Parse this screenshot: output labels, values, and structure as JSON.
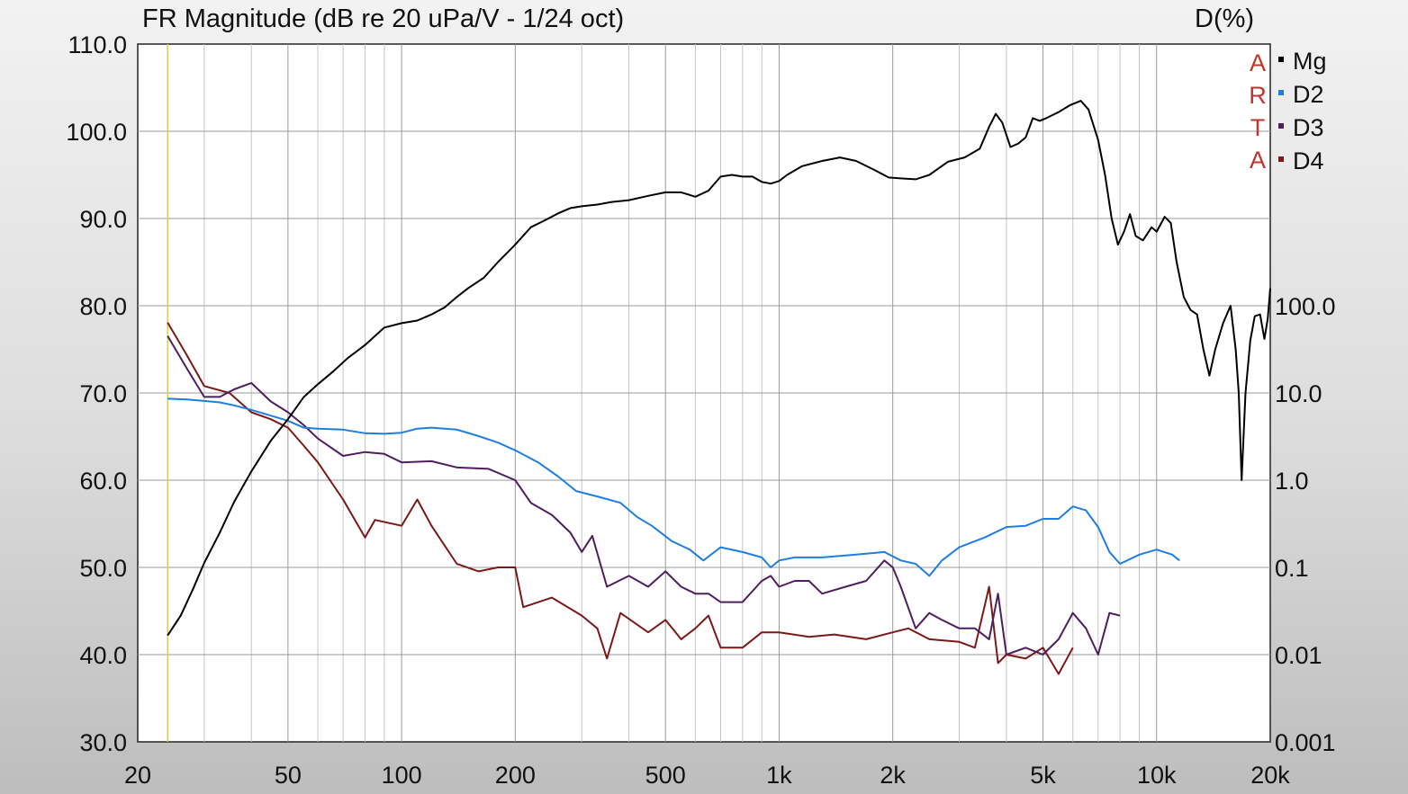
{
  "chart_data": {
    "type": "line",
    "title": "FR Magnitude (dB re 20 uPa/V - 1/24 oct)",
    "right_axis_label": "D(%)",
    "x_scale": "log",
    "xlim": [
      20,
      20000
    ],
    "x_ticks": [
      {
        "value": 20,
        "label": "20"
      },
      {
        "value": 50,
        "label": "50"
      },
      {
        "value": 100,
        "label": "100"
      },
      {
        "value": 200,
        "label": "200"
      },
      {
        "value": 500,
        "label": "500"
      },
      {
        "value": 1000,
        "label": "1k"
      },
      {
        "value": 2000,
        "label": "2k"
      },
      {
        "value": 5000,
        "label": "5k"
      },
      {
        "value": 10000,
        "label": "10k"
      },
      {
        "value": 20000,
        "label": "20k"
      }
    ],
    "ylim": [
      30,
      110
    ],
    "y_ticks": [
      "30.0",
      "40.0",
      "50.0",
      "60.0",
      "70.0",
      "80.0",
      "90.0",
      "100.0",
      "110.0"
    ],
    "y2_scale": "log",
    "y2lim": [
      0.001,
      100
    ],
    "y2_ticks": [
      "0.001",
      "0.01",
      "0.1",
      "1.0",
      "10.0",
      "100.0"
    ],
    "grid": true,
    "marker_frequency": 24,
    "brand_letters": [
      "A",
      "R",
      "T",
      "A"
    ],
    "legend_placement": "top-right",
    "series": [
      {
        "name": "Mg",
        "color": "#000000",
        "axis": "left",
        "points": [
          [
            24,
            42.2
          ],
          [
            26,
            44.5
          ],
          [
            28,
            47.5
          ],
          [
            30,
            50.5
          ],
          [
            33,
            54
          ],
          [
            36,
            57.5
          ],
          [
            40,
            61
          ],
          [
            45,
            64.5
          ],
          [
            50,
            67
          ],
          [
            55,
            69.5
          ],
          [
            60,
            71
          ],
          [
            66,
            72.5
          ],
          [
            72,
            74
          ],
          [
            80,
            75.5
          ],
          [
            90,
            77.5
          ],
          [
            100,
            78
          ],
          [
            110,
            78.3
          ],
          [
            120,
            79
          ],
          [
            130,
            79.8
          ],
          [
            140,
            81
          ],
          [
            150,
            82
          ],
          [
            165,
            83.2
          ],
          [
            180,
            85
          ],
          [
            200,
            87
          ],
          [
            220,
            89
          ],
          [
            240,
            89.8
          ],
          [
            260,
            90.6
          ],
          [
            280,
            91.2
          ],
          [
            300,
            91.4
          ],
          [
            330,
            91.6
          ],
          [
            360,
            91.9
          ],
          [
            400,
            92.1
          ],
          [
            450,
            92.6
          ],
          [
            500,
            93
          ],
          [
            550,
            93
          ],
          [
            600,
            92.5
          ],
          [
            650,
            93.2
          ],
          [
            700,
            94.8
          ],
          [
            750,
            95
          ],
          [
            800,
            94.8
          ],
          [
            850,
            94.8
          ],
          [
            900,
            94.2
          ],
          [
            950,
            94
          ],
          [
            1000,
            94.3
          ],
          [
            1050,
            95
          ],
          [
            1150,
            96
          ],
          [
            1300,
            96.6
          ],
          [
            1450,
            97
          ],
          [
            1600,
            96.6
          ],
          [
            1800,
            95.5
          ],
          [
            1950,
            94.7
          ],
          [
            2100,
            94.6
          ],
          [
            2300,
            94.5
          ],
          [
            2500,
            95
          ],
          [
            2800,
            96.5
          ],
          [
            3100,
            97
          ],
          [
            3400,
            98
          ],
          [
            3600,
            100.5
          ],
          [
            3750,
            102
          ],
          [
            3900,
            101
          ],
          [
            4100,
            98.2
          ],
          [
            4300,
            98.6
          ],
          [
            4500,
            99.3
          ],
          [
            4700,
            101.5
          ],
          [
            4900,
            101.2
          ],
          [
            5100,
            101.5
          ],
          [
            5500,
            102.2
          ],
          [
            5900,
            103
          ],
          [
            6300,
            103.5
          ],
          [
            6600,
            102.5
          ],
          [
            7000,
            99
          ],
          [
            7300,
            95
          ],
          [
            7600,
            90
          ],
          [
            7900,
            87
          ],
          [
            8200,
            88.5
          ],
          [
            8500,
            90.5
          ],
          [
            8800,
            88
          ],
          [
            9200,
            87.5
          ],
          [
            9700,
            89
          ],
          [
            10000,
            88.5
          ],
          [
            10500,
            90.2
          ],
          [
            10900,
            89.5
          ],
          [
            11300,
            85
          ],
          [
            11800,
            81
          ],
          [
            12300,
            79.5
          ],
          [
            12800,
            79
          ],
          [
            13300,
            75
          ],
          [
            13800,
            72
          ],
          [
            14300,
            75
          ],
          [
            15000,
            78
          ],
          [
            15700,
            80
          ],
          [
            16200,
            75
          ],
          [
            16500,
            70
          ],
          [
            16800,
            60
          ],
          [
            17200,
            70
          ],
          [
            17700,
            76
          ],
          [
            18200,
            78.8
          ],
          [
            18800,
            79
          ],
          [
            19300,
            76.2
          ],
          [
            19700,
            78.5
          ],
          [
            20000,
            82
          ]
        ]
      },
      {
        "name": "D2",
        "color": "#1e7fe0",
        "axis": "right",
        "points": [
          [
            24,
            8.6
          ],
          [
            27,
            8.4
          ],
          [
            30,
            8.1
          ],
          [
            33,
            7.8
          ],
          [
            36,
            7.2
          ],
          [
            40,
            6.4
          ],
          [
            45,
            5.5
          ],
          [
            50,
            4.8
          ],
          [
            55,
            4.0
          ],
          [
            60,
            3.9
          ],
          [
            70,
            3.8
          ],
          [
            80,
            3.45
          ],
          [
            90,
            3.4
          ],
          [
            100,
            3.5
          ],
          [
            110,
            3.9
          ],
          [
            120,
            4.0
          ],
          [
            140,
            3.8
          ],
          [
            160,
            3.2
          ],
          [
            180,
            2.7
          ],
          [
            200,
            2.2
          ],
          [
            230,
            1.6
          ],
          [
            260,
            1.1
          ],
          [
            290,
            0.75
          ],
          [
            330,
            0.65
          ],
          [
            380,
            0.55
          ],
          [
            420,
            0.38
          ],
          [
            460,
            0.3
          ],
          [
            520,
            0.2
          ],
          [
            580,
            0.16
          ],
          [
            630,
            0.12
          ],
          [
            700,
            0.17
          ],
          [
            800,
            0.15
          ],
          [
            900,
            0.13
          ],
          [
            950,
            0.1
          ],
          [
            1000,
            0.12
          ],
          [
            1100,
            0.13
          ],
          [
            1300,
            0.13
          ],
          [
            1600,
            0.14
          ],
          [
            1900,
            0.15
          ],
          [
            2100,
            0.12
          ],
          [
            2300,
            0.11
          ],
          [
            2500,
            0.08
          ],
          [
            2700,
            0.12
          ],
          [
            3000,
            0.17
          ],
          [
            3500,
            0.22
          ],
          [
            4000,
            0.29
          ],
          [
            4500,
            0.3
          ],
          [
            5000,
            0.36
          ],
          [
            5500,
            0.36
          ],
          [
            6000,
            0.5
          ],
          [
            6500,
            0.45
          ],
          [
            7000,
            0.29
          ],
          [
            7500,
            0.15
          ],
          [
            8000,
            0.11
          ],
          [
            9000,
            0.14
          ],
          [
            10000,
            0.16
          ],
          [
            11000,
            0.14
          ],
          [
            11500,
            0.12
          ]
        ]
      },
      {
        "name": "D3",
        "color": "#4e1e5e",
        "axis": "right",
        "points": [
          [
            24,
            45
          ],
          [
            27,
            19
          ],
          [
            30,
            9
          ],
          [
            33,
            9
          ],
          [
            36,
            11
          ],
          [
            40,
            13
          ],
          [
            45,
            8
          ],
          [
            50,
            6
          ],
          [
            55,
            4.3
          ],
          [
            60,
            3
          ],
          [
            70,
            1.9
          ],
          [
            80,
            2.1
          ],
          [
            90,
            2
          ],
          [
            100,
            1.6
          ],
          [
            120,
            1.65
          ],
          [
            140,
            1.4
          ],
          [
            170,
            1.35
          ],
          [
            200,
            1.0
          ],
          [
            220,
            0.55
          ],
          [
            250,
            0.4
          ],
          [
            280,
            0.25
          ],
          [
            300,
            0.15
          ],
          [
            320,
            0.23
          ],
          [
            350,
            0.06
          ],
          [
            400,
            0.08
          ],
          [
            450,
            0.06
          ],
          [
            500,
            0.09
          ],
          [
            550,
            0.06
          ],
          [
            600,
            0.05
          ],
          [
            650,
            0.05
          ],
          [
            700,
            0.04
          ],
          [
            800,
            0.04
          ],
          [
            900,
            0.07
          ],
          [
            950,
            0.08
          ],
          [
            1000,
            0.06
          ],
          [
            1100,
            0.07
          ],
          [
            1200,
            0.07
          ],
          [
            1300,
            0.05
          ],
          [
            1500,
            0.06
          ],
          [
            1700,
            0.07
          ],
          [
            1900,
            0.12
          ],
          [
            2000,
            0.1
          ],
          [
            2100,
            0.06
          ],
          [
            2300,
            0.02
          ],
          [
            2500,
            0.03
          ],
          [
            2700,
            0.025
          ],
          [
            3000,
            0.02
          ],
          [
            3300,
            0.02
          ],
          [
            3600,
            0.015
          ],
          [
            3800,
            0.05
          ],
          [
            4000,
            0.01
          ],
          [
            4500,
            0.012
          ],
          [
            5000,
            0.01
          ],
          [
            5500,
            0.015
          ],
          [
            6000,
            0.03
          ],
          [
            6500,
            0.02
          ],
          [
            7000,
            0.01
          ],
          [
            7500,
            0.03
          ],
          [
            8000,
            0.028
          ]
        ]
      },
      {
        "name": "D4",
        "color": "#7b1818",
        "axis": "right",
        "points": [
          [
            24,
            64
          ],
          [
            27,
            27
          ],
          [
            30,
            12
          ],
          [
            35,
            10
          ],
          [
            40,
            6
          ],
          [
            45,
            5
          ],
          [
            50,
            4
          ],
          [
            55,
            2.5
          ],
          [
            60,
            1.6
          ],
          [
            70,
            0.6
          ],
          [
            80,
            0.22
          ],
          [
            85,
            0.35
          ],
          [
            100,
            0.3
          ],
          [
            110,
            0.6
          ],
          [
            120,
            0.3
          ],
          [
            140,
            0.11
          ],
          [
            160,
            0.09
          ],
          [
            180,
            0.1
          ],
          [
            200,
            0.1
          ],
          [
            210,
            0.035
          ],
          [
            250,
            0.045
          ],
          [
            300,
            0.028
          ],
          [
            330,
            0.02
          ],
          [
            350,
            0.009
          ],
          [
            380,
            0.03
          ],
          [
            450,
            0.018
          ],
          [
            500,
            0.025
          ],
          [
            550,
            0.015
          ],
          [
            600,
            0.02
          ],
          [
            650,
            0.028
          ],
          [
            700,
            0.012
          ],
          [
            800,
            0.012
          ],
          [
            900,
            0.018
          ],
          [
            1000,
            0.018
          ],
          [
            1200,
            0.016
          ],
          [
            1400,
            0.017
          ],
          [
            1700,
            0.015
          ],
          [
            2000,
            0.018
          ],
          [
            2200,
            0.02
          ],
          [
            2500,
            0.015
          ],
          [
            3000,
            0.014
          ],
          [
            3300,
            0.012
          ],
          [
            3600,
            0.06
          ],
          [
            3800,
            0.008
          ],
          [
            4000,
            0.01
          ],
          [
            4500,
            0.009
          ],
          [
            5000,
            0.012
          ],
          [
            5500,
            0.006
          ],
          [
            6000,
            0.012
          ]
        ]
      }
    ]
  }
}
